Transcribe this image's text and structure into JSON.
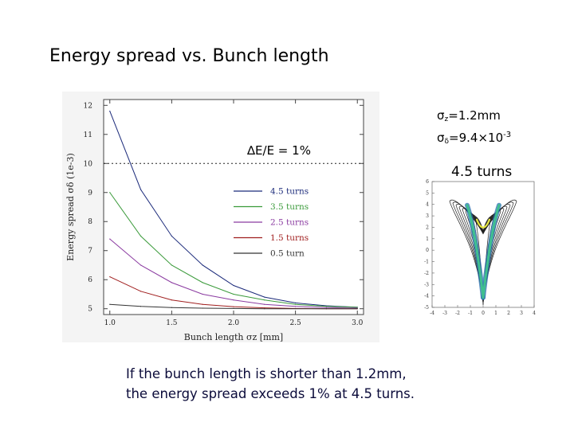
{
  "slide": {
    "title": "Energy spread vs. Bunch length",
    "sigma_z_symbol": "σ",
    "sigma_z_sub": "z",
    "sigma_z_value": "=1.2mm",
    "sigma_d_symbol": "σ",
    "sigma_d_sub": "δ",
    "sigma_d_value": "=9.4×10",
    "sigma_d_exp": "-3",
    "contour_title": "4.5 turns",
    "de_label": "∆E/E = 1%",
    "caption_line1": "If the bunch length is shorter than 1.2mm,",
    "caption_line2": "the energy spread exceeds 1% at 4.5 turns."
  },
  "chart_data": [
    {
      "type": "line",
      "xlabel": "Bunch length   σz [mm]",
      "ylabel": "Energy spread  σδ  (1e-3)",
      "xlim": [
        0.95,
        3.05
      ],
      "ylim": [
        4.8,
        12.2
      ],
      "xticks": [
        "1.0",
        "1.5",
        "2.0",
        "2.5",
        "3.0"
      ],
      "yticks": [
        "5",
        "6",
        "7",
        "8",
        "9",
        "10",
        "11",
        "12"
      ],
      "legend_position": "center-right",
      "reference_line": {
        "y": 10,
        "style": "dotted",
        "label": "∆E/E = 1%"
      },
      "series": [
        {
          "name": "4.5 turns",
          "color": "#1b2a7a",
          "x": [
            1.0,
            1.25,
            1.5,
            1.75,
            2.0,
            2.25,
            2.5,
            2.75,
            3.0
          ],
          "values": [
            11.8,
            9.1,
            7.5,
            6.5,
            5.8,
            5.4,
            5.2,
            5.1,
            5.05
          ]
        },
        {
          "name": "3.5 turns",
          "color": "#3a9a3a",
          "x": [
            1.0,
            1.25,
            1.5,
            1.75,
            2.0,
            2.25,
            2.5,
            2.75,
            3.0
          ],
          "values": [
            9.0,
            7.5,
            6.5,
            5.9,
            5.5,
            5.3,
            5.15,
            5.08,
            5.05
          ]
        },
        {
          "name": "2.5 turns",
          "color": "#8a3aa0",
          "x": [
            1.0,
            1.25,
            1.5,
            1.75,
            2.0,
            2.25,
            2.5,
            2.75,
            3.0
          ],
          "values": [
            7.4,
            6.5,
            5.9,
            5.5,
            5.3,
            5.15,
            5.08,
            5.04,
            5.02
          ]
        },
        {
          "name": "1.5 turns",
          "color": "#a01e1e",
          "x": [
            1.0,
            1.25,
            1.5,
            1.75,
            2.0,
            2.25,
            2.5,
            2.75,
            3.0
          ],
          "values": [
            6.1,
            5.6,
            5.3,
            5.15,
            5.07,
            5.03,
            5.01,
            5.0,
            5.0
          ]
        },
        {
          "name": "0.5 turn",
          "color": "#333333",
          "x": [
            1.0,
            1.25,
            1.5,
            1.75,
            2.0,
            2.25,
            2.5,
            2.75,
            3.0
          ],
          "values": [
            5.15,
            5.08,
            5.04,
            5.02,
            5.01,
            5.0,
            5.0,
            5.0,
            5.0
          ]
        }
      ]
    },
    {
      "type": "contour",
      "title": "4.5 turns",
      "xlim": [
        -4,
        4
      ],
      "ylim": [
        -5,
        6
      ],
      "xticks": [
        "-4",
        "-3",
        "-2",
        "-1",
        "0",
        "1",
        "2",
        "3",
        "4"
      ],
      "yticks": [
        "-5",
        "-4",
        "-3",
        "-2",
        "-1",
        "0",
        "1",
        "2",
        "3",
        "4",
        "5",
        "6"
      ]
    }
  ]
}
